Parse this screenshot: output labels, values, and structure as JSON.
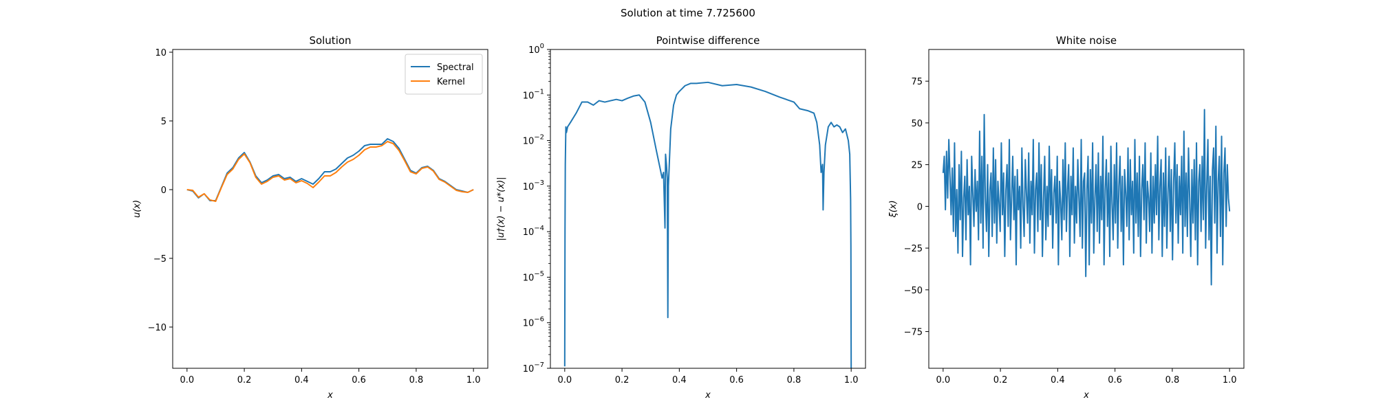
{
  "suptitle": "Solution at time 7.725600",
  "colors": {
    "spectral": "#1f77b4",
    "kernel": "#ff7f0e",
    "axis": "#000000",
    "background": "#ffffff"
  },
  "chart_data": [
    {
      "type": "line",
      "title": "Solution",
      "xlabel": "x",
      "ylabel": "u(x)",
      "xlim": [
        -0.05,
        1.05
      ],
      "ylim": [
        -13.0,
        10.2
      ],
      "xticks": [
        0.0,
        0.2,
        0.4,
        0.6,
        0.8,
        1.0
      ],
      "xtick_labels": [
        "0.0",
        "0.2",
        "0.4",
        "0.6",
        "0.8",
        "1.0"
      ],
      "yticks": [
        -10,
        -5,
        0,
        5,
        10
      ],
      "ytick_labels": [
        "−10",
        "−5",
        "0",
        "5",
        "10"
      ],
      "legend_position": "top-right",
      "x": [
        0.0,
        0.02,
        0.04,
        0.06,
        0.08,
        0.1,
        0.12,
        0.14,
        0.16,
        0.18,
        0.2,
        0.22,
        0.24,
        0.26,
        0.28,
        0.3,
        0.32,
        0.34,
        0.36,
        0.38,
        0.4,
        0.42,
        0.44,
        0.46,
        0.48,
        0.5,
        0.52,
        0.54,
        0.56,
        0.58,
        0.6,
        0.62,
        0.64,
        0.66,
        0.68,
        0.7,
        0.72,
        0.74,
        0.76,
        0.78,
        0.8,
        0.82,
        0.84,
        0.86,
        0.88,
        0.9,
        0.92,
        0.94,
        0.96,
        0.98,
        1.0
      ],
      "series": [
        {
          "name": "Spectral",
          "color": "#1f77b4",
          "values": [
            0.0,
            -0.1,
            -0.6,
            -0.3,
            -0.8,
            -0.8,
            0.2,
            1.2,
            1.6,
            2.3,
            2.7,
            2.0,
            1.0,
            0.5,
            0.7,
            1.0,
            1.1,
            0.8,
            0.9,
            0.6,
            0.8,
            0.6,
            0.4,
            0.8,
            1.3,
            1.3,
            1.5,
            1.9,
            2.3,
            2.5,
            2.8,
            3.2,
            3.3,
            3.3,
            3.3,
            3.7,
            3.5,
            3.0,
            2.2,
            1.4,
            1.2,
            1.6,
            1.7,
            1.4,
            0.8,
            0.6,
            0.3,
            0.0,
            -0.1,
            -0.2,
            0.0
          ]
        },
        {
          "name": "Kernel",
          "color": "#ff7f0e",
          "values": [
            0.0,
            -0.05,
            -0.55,
            -0.3,
            -0.75,
            -0.85,
            0.15,
            1.1,
            1.5,
            2.2,
            2.6,
            1.95,
            0.9,
            0.4,
            0.6,
            0.9,
            1.0,
            0.7,
            0.8,
            0.5,
            0.65,
            0.45,
            0.15,
            0.55,
            1.0,
            1.0,
            1.25,
            1.65,
            2.0,
            2.2,
            2.5,
            2.9,
            3.1,
            3.1,
            3.2,
            3.5,
            3.35,
            2.85,
            2.1,
            1.3,
            1.15,
            1.55,
            1.65,
            1.35,
            0.75,
            0.55,
            0.25,
            -0.05,
            -0.15,
            -0.2,
            0.0
          ]
        }
      ]
    },
    {
      "type": "line",
      "title": "Pointwise difference",
      "xlabel": "x",
      "ylabel": "|u†(x) − u*(x)|",
      "yscale": "log",
      "xlim": [
        -0.05,
        1.05
      ],
      "ylim": [
        1e-07,
        1
      ],
      "xticks": [
        0.0,
        0.2,
        0.4,
        0.6,
        0.8,
        1.0
      ],
      "xtick_labels": [
        "0.0",
        "0.2",
        "0.4",
        "0.6",
        "0.8",
        "1.0"
      ],
      "yticks": [
        1e-07,
        1e-06,
        1e-05,
        0.0001,
        0.001,
        0.01,
        0.1,
        1
      ],
      "ytick_mantissa": [
        "10",
        "10",
        "10",
        "10",
        "10",
        "10",
        "10",
        "10"
      ],
      "ytick_exponents": [
        "−7",
        "−6",
        "−5",
        "−4",
        "−3",
        "−2",
        "−1",
        "0"
      ],
      "series": [
        {
          "name": "",
          "color": "#1f77b4",
          "x": [
            0.0,
            0.001,
            0.002,
            0.003,
            0.004,
            0.006,
            0.01,
            0.02,
            0.04,
            0.06,
            0.08,
            0.1,
            0.12,
            0.14,
            0.16,
            0.18,
            0.2,
            0.22,
            0.24,
            0.26,
            0.28,
            0.3,
            0.32,
            0.33,
            0.34,
            0.345,
            0.35,
            0.352,
            0.355,
            0.358,
            0.36,
            0.362,
            0.365,
            0.37,
            0.38,
            0.39,
            0.4,
            0.42,
            0.44,
            0.46,
            0.5,
            0.55,
            0.6,
            0.65,
            0.7,
            0.75,
            0.8,
            0.82,
            0.85,
            0.87,
            0.88,
            0.89,
            0.895,
            0.9,
            0.902,
            0.905,
            0.91,
            0.92,
            0.93,
            0.94,
            0.95,
            0.96,
            0.97,
            0.98,
            0.99,
            0.995,
            0.998,
            0.999,
            1.0
          ],
          "values": [
            1.1e-07,
            0.0001,
            0.003,
            0.008,
            0.02,
            0.015,
            0.02,
            0.025,
            0.04,
            0.07,
            0.07,
            0.06,
            0.075,
            0.07,
            0.075,
            0.08,
            0.075,
            0.085,
            0.095,
            0.1,
            0.07,
            0.025,
            0.006,
            0.003,
            0.0015,
            0.002,
            0.00012,
            0.005,
            0.003,
            0.0015,
            1.3e-06,
            0.001,
            0.003,
            0.018,
            0.06,
            0.1,
            0.12,
            0.16,
            0.18,
            0.18,
            0.19,
            0.16,
            0.17,
            0.15,
            0.12,
            0.09,
            0.07,
            0.05,
            0.045,
            0.04,
            0.025,
            0.008,
            0.002,
            0.003,
            0.0003,
            0.002,
            0.008,
            0.02,
            0.025,
            0.02,
            0.022,
            0.02,
            0.015,
            0.018,
            0.01,
            0.005,
            0.0005,
            5e-05,
            1e-07
          ]
        }
      ]
    },
    {
      "type": "line",
      "title": "White noise",
      "xlabel": "x",
      "ylabel": "ξ(x)",
      "xlim": [
        -0.05,
        1.05
      ],
      "ylim": [
        -97,
        94
      ],
      "xticks": [
        0.0,
        0.2,
        0.4,
        0.6,
        0.8,
        1.0
      ],
      "xtick_labels": [
        "0.0",
        "0.2",
        "0.4",
        "0.6",
        "0.8",
        "1.0"
      ],
      "yticks": [
        -75,
        -50,
        -25,
        0,
        25,
        50,
        75
      ],
      "ytick_labels": [
        "−75",
        "−50",
        "−25",
        "0",
        "25",
        "50",
        "75"
      ],
      "x_start": 0.0,
      "x_end": 1.0,
      "series": [
        {
          "name": "",
          "color": "#1f77b4",
          "values": [
            20,
            30,
            -2,
            33,
            5,
            40,
            18,
            -5,
            23,
            -15,
            38,
            -18,
            10,
            -28,
            25,
            -8,
            33,
            -30,
            5,
            18,
            -20,
            28,
            -5,
            12,
            -35,
            30,
            8,
            -12,
            22,
            -3,
            15,
            -20,
            45,
            -10,
            30,
            -25,
            55,
            5,
            -15,
            25,
            -30,
            10,
            20,
            -18,
            35,
            -10,
            28,
            -22,
            15,
            2,
            -15,
            38,
            -5,
            20,
            -30,
            10,
            25,
            -12,
            40,
            -20,
            5,
            30,
            -8,
            18,
            -35,
            22,
            -2,
            12,
            -25,
            35,
            0,
            -18,
            28,
            8,
            -10,
            32,
            -22,
            15,
            -5,
            40,
            -28,
            10,
            20,
            -15,
            38,
            -8,
            25,
            -30,
            5,
            30,
            -20,
            12,
            -12,
            36,
            -5,
            22,
            -25,
            8,
            18,
            -10,
            30,
            -35,
            15,
            2,
            -20,
            28,
            -8,
            38,
            -15,
            10,
            25,
            -30,
            18,
            -5,
            35,
            -22,
            12,
            -10,
            28,
            5,
            -18,
            40,
            -25,
            15,
            20,
            -42,
            10,
            30,
            -35,
            22,
            -10,
            38,
            -28,
            5,
            25,
            -15,
            32,
            -22,
            18,
            -8,
            42,
            -35,
            10,
            28,
            -12,
            20,
            -30,
            36,
            2,
            -20,
            25,
            -10,
            38,
            -25,
            12,
            30,
            -15,
            18,
            -35,
            22,
            8,
            -12,
            35,
            -20,
            28,
            -5,
            15,
            -28,
            40,
            -10,
            20,
            -18,
            30,
            -30,
            10,
            25,
            -8,
            38,
            -22,
            15,
            5,
            -15,
            32,
            -28,
            18,
            -10,
            25,
            -5,
            42,
            -20,
            12,
            28,
            -30,
            20,
            -12,
            35,
            -25,
            8,
            30,
            -15,
            22,
            -32,
            15,
            38,
            -10,
            25,
            -22,
            18,
            -5,
            30,
            -28,
            45,
            -12,
            20,
            -18,
            35,
            5,
            -30,
            22,
            -10,
            28,
            -20,
            38,
            -35,
            15,
            25,
            -15,
            30,
            -8,
            58,
            -25,
            12,
            40,
            -20,
            18,
            -47,
            22,
            35,
            -10,
            48,
            -28,
            15,
            30,
            -18,
            42,
            -35,
            20,
            35,
            -12,
            25,
            5,
            -3
          ]
        }
      ]
    }
  ]
}
